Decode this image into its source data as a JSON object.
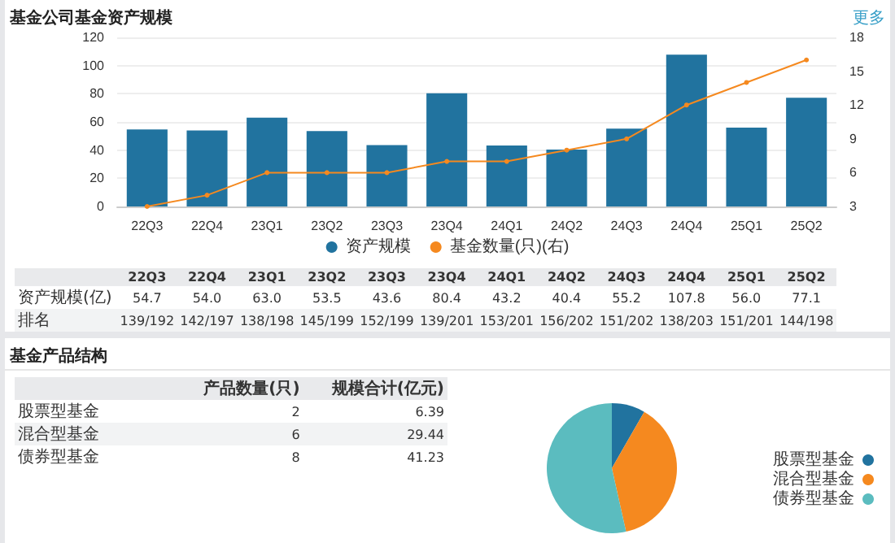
{
  "chart_data": [
    {
      "type": "bar",
      "title": "基金公司基金资产规模",
      "categories": [
        "22Q3",
        "22Q4",
        "23Q1",
        "23Q2",
        "23Q3",
        "23Q4",
        "24Q1",
        "24Q2",
        "24Q3",
        "24Q4",
        "25Q1",
        "25Q2"
      ],
      "series": [
        {
          "name": "资产规模",
          "type": "bar",
          "color": "#21739f",
          "values": [
            54.7,
            54.0,
            63.0,
            53.5,
            43.6,
            80.4,
            43.2,
            40.4,
            55.2,
            107.8,
            56.0,
            77.1
          ],
          "value_labels": [
            "54.7",
            "54.0",
            "63.0",
            "53.5",
            "43.6",
            "80.4",
            "43.2",
            "40.4",
            "55.2",
            "107.8",
            "56.0",
            "77.1"
          ]
        },
        {
          "name": "基金数量(只)(右)",
          "type": "line",
          "axis": "y2",
          "color": "#f5891f",
          "values": [
            3,
            4,
            6,
            6,
            6,
            7,
            7,
            8,
            9,
            12,
            14,
            16
          ]
        }
      ],
      "ylim": [
        0,
        120
      ],
      "yticks": [
        0,
        20,
        40,
        60,
        80,
        100,
        120
      ],
      "y2lim": [
        3,
        18
      ],
      "y2ticks": [
        3,
        6,
        9,
        12,
        15,
        18
      ],
      "grid": "y",
      "legend": "bottom",
      "marker": "circle",
      "annotations": [
        "更多",
        "资产规模(亿)",
        "排名",
        "139/192",
        "142/197",
        "138/198",
        "145/199",
        "152/199",
        "139/201",
        "153/201",
        "156/202",
        "151/202",
        "138/203",
        "151/201",
        "144/198"
      ]
    },
    {
      "type": "other",
      "title": "基金产品结构",
      "annotations": [
        "产品数量(只)",
        "规模合计(亿元)",
        "股票型基金",
        "2",
        "6.39",
        "混合型基金",
        "6",
        "29.44",
        "债券型基金",
        "8",
        "41.23"
      ]
    },
    {
      "type": "pie",
      "categories": [
        "股票型基金",
        "混合型基金",
        "债券型基金"
      ],
      "values": [
        8.3,
        38.2,
        53.5
      ],
      "colors": [
        "#21739f",
        "#f5891f",
        "#5bbcbf"
      ],
      "legend": "right"
    }
  ]
}
